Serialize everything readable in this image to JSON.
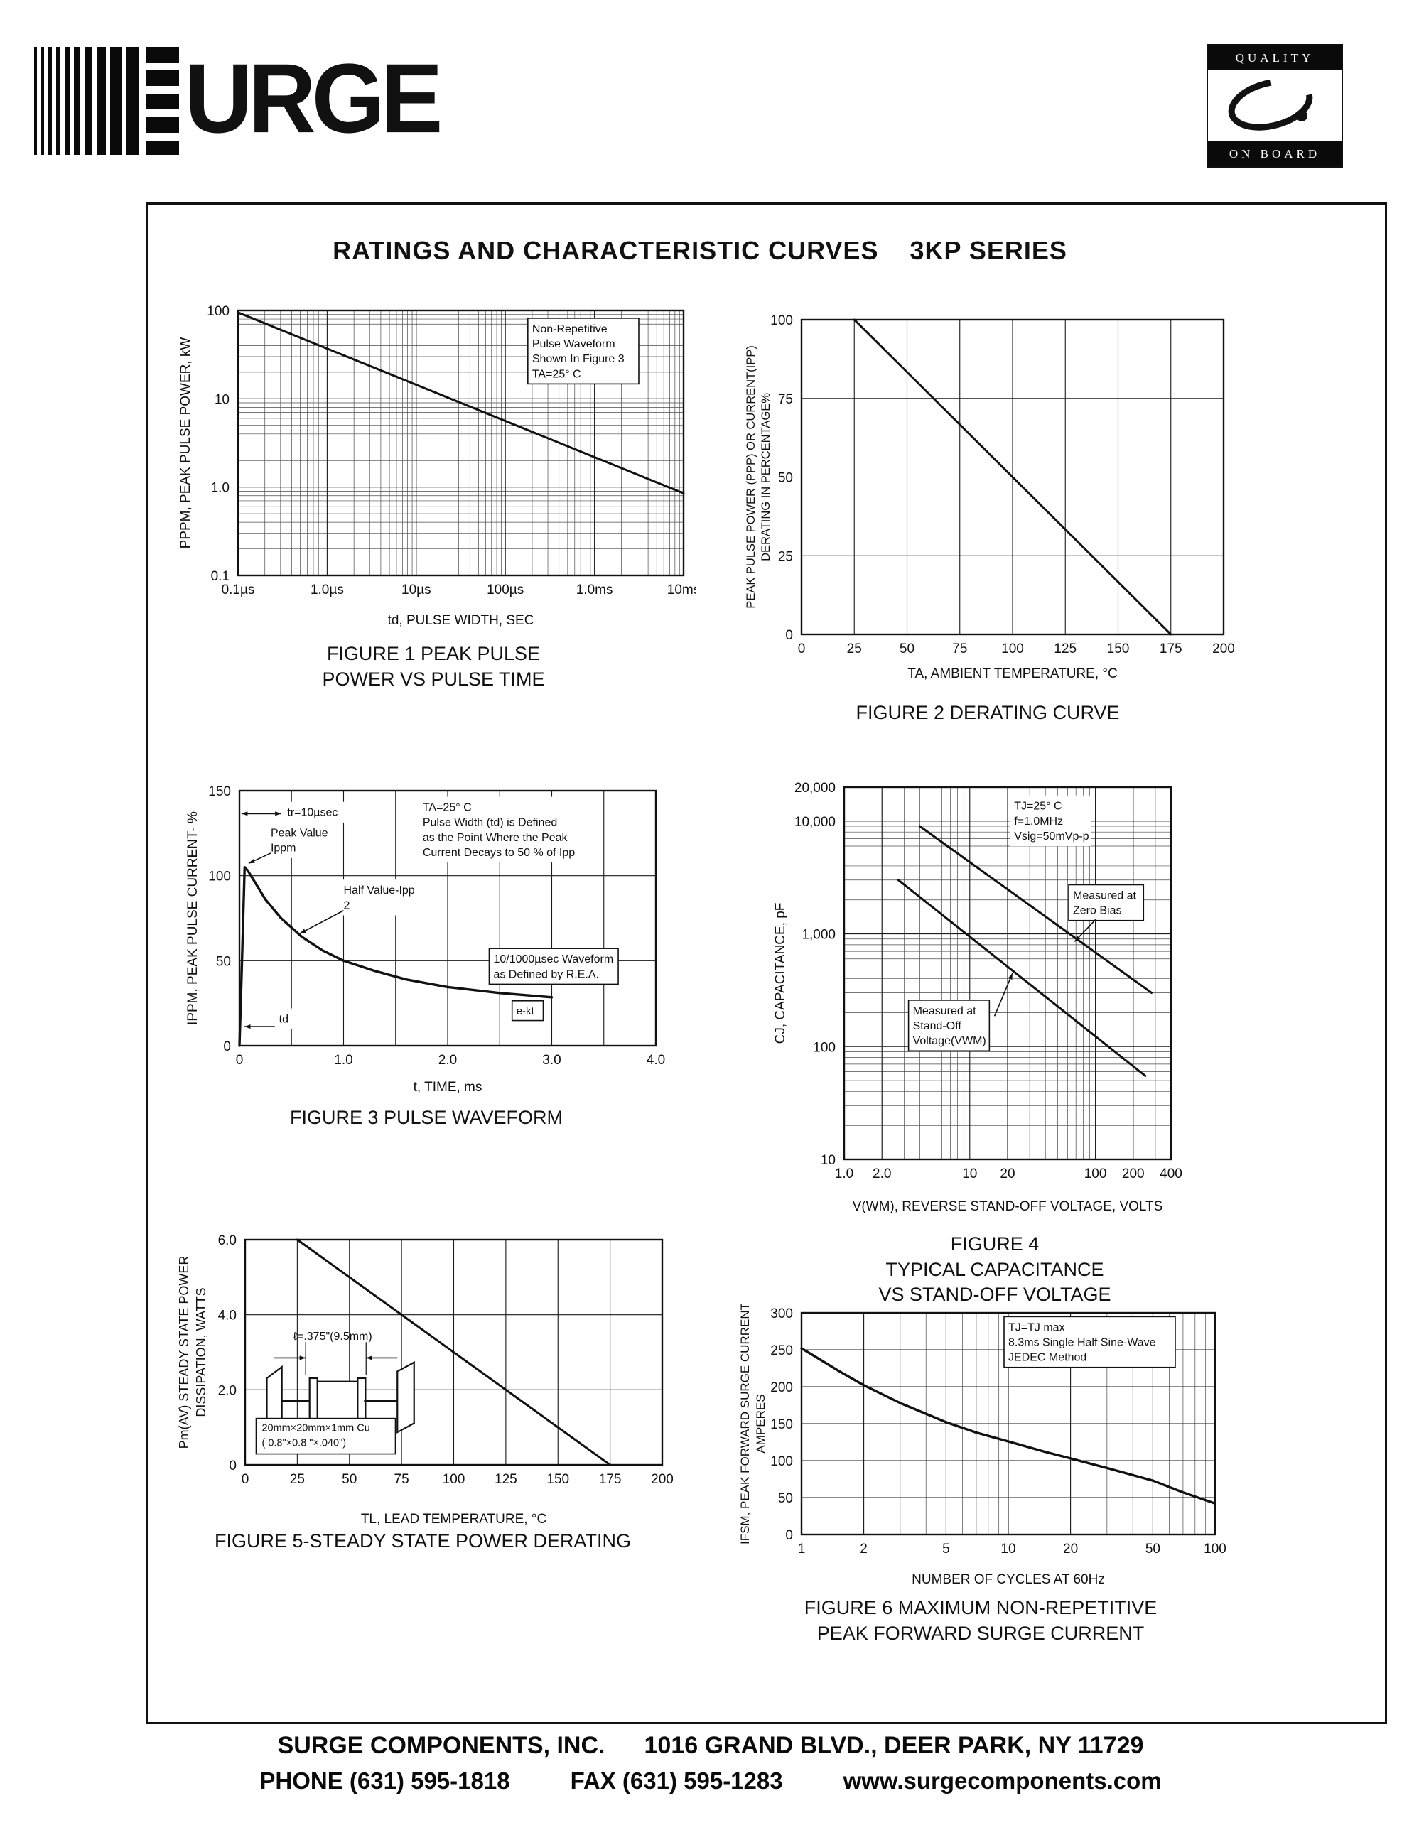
{
  "page": {
    "title": "RATINGS AND CHARACTERISTIC CURVES    3KP SERIES",
    "logo_text": "URGE",
    "quality_badge": {
      "top": "QUALITY",
      "bottom": "ON BOARD"
    },
    "footer": {
      "company": "SURGE COMPONENTS, INC.",
      "address": "1016 GRAND BLVD., DEER PARK, NY  11729",
      "phone": "PHONE (631) 595-1818",
      "fax": "FAX  (631) 595-1283",
      "website": "www.surgecomponents.com"
    }
  },
  "chart_data": [
    {
      "id": "fig1",
      "type": "line",
      "xscale": "log",
      "yscale": "log",
      "xlim": [
        1e-07,
        0.01
      ],
      "ylim": [
        0.1,
        100
      ],
      "xlabel": "td, PULSE WIDTH, SEC",
      "ylabel": "PPPM, PEAK PULSE POWER, kW",
      "x_ticks": [
        {
          "v": 1e-07,
          "label": "0.1µs"
        },
        {
          "v": 1e-06,
          "label": "1.0µs"
        },
        {
          "v": 1e-05,
          "label": "10µs"
        },
        {
          "v": 0.0001,
          "label": "100µs"
        },
        {
          "v": 0.001,
          "label": "1.0ms"
        },
        {
          "v": 0.01,
          "label": "10ms"
        }
      ],
      "y_ticks": [
        {
          "v": 0.1,
          "label": "0.1"
        },
        {
          "v": 1,
          "label": "1.0"
        },
        {
          "v": 10,
          "label": "10"
        },
        {
          "v": 100,
          "label": "100"
        }
      ],
      "minor_x": true,
      "minor_y": true,
      "series": [
        {
          "name": "peak-pulse-power",
          "points": [
            [
              1e-07,
              95
            ],
            [
              0.01,
              0.85
            ]
          ]
        }
      ],
      "annotations": [
        {
          "text": "Non-Repetitive\nPulse Waveform\nShown In Figure 3\nTA=25° C",
          "x": 0.66,
          "y": 0.04,
          "boxed": true,
          "size": 16
        }
      ],
      "caption": "FIGURE 1 PEAK PULSE\nPOWER VS PULSE TIME"
    },
    {
      "id": "fig2",
      "type": "line",
      "xscale": "linear",
      "yscale": "linear",
      "xlim": [
        0,
        200
      ],
      "ylim": [
        0,
        100
      ],
      "xlabel": "TA, AMBIENT   TEMPERATURE, °C",
      "ylabel": "PEAK  PULSE  POWER (PPP) OR  CURRENT(IPP)\nDERATING IN PERCENTAGE%",
      "x_ticks": [
        {
          "v": 0,
          "label": "0"
        },
        {
          "v": 25,
          "label": "25"
        },
        {
          "v": 50,
          "label": "50"
        },
        {
          "v": 75,
          "label": "75"
        },
        {
          "v": 100,
          "label": "100"
        },
        {
          "v": 125,
          "label": "125"
        },
        {
          "v": 150,
          "label": "150"
        },
        {
          "v": 175,
          "label": "175"
        },
        {
          "v": 200,
          "label": "200"
        }
      ],
      "y_ticks": [
        {
          "v": 0,
          "label": "0"
        },
        {
          "v": 25,
          "label": "25"
        },
        {
          "v": 50,
          "label": "50"
        },
        {
          "v": 75,
          "label": "75"
        },
        {
          "v": 100,
          "label": "100"
        }
      ],
      "series": [
        {
          "name": "derating",
          "points": [
            [
              25,
              100
            ],
            [
              175,
              0
            ]
          ]
        }
      ],
      "caption": "FIGURE 2 DERATING CURVE"
    },
    {
      "id": "fig3",
      "type": "line",
      "xscale": "linear",
      "yscale": "linear",
      "xlim": [
        0,
        4
      ],
      "ylim": [
        0,
        150
      ],
      "xlabel": "t, TIME, ms",
      "ylabel": "IPPM, PEAK PULSE CURRENT- %",
      "x_ticks": [
        {
          "v": 0,
          "label": "0"
        },
        {
          "v": 0.5,
          "label": ""
        },
        {
          "v": 1,
          "label": "1.0"
        },
        {
          "v": 1.5,
          "label": ""
        },
        {
          "v": 2,
          "label": "2.0"
        },
        {
          "v": 2.5,
          "label": ""
        },
        {
          "v": 3,
          "label": "3.0"
        },
        {
          "v": 3.5,
          "label": ""
        },
        {
          "v": 4,
          "label": "4.0"
        }
      ],
      "y_ticks": [
        {
          "v": 0,
          "label": "0"
        },
        {
          "v": 50,
          "label": "50"
        },
        {
          "v": 100,
          "label": "100"
        },
        {
          "v": 150,
          "label": "150"
        }
      ],
      "series": [
        {
          "name": "pulse-waveform",
          "points": [
            [
              0,
              0
            ],
            [
              0.02,
              40
            ],
            [
              0.05,
              105
            ],
            [
              0.08,
              103
            ],
            [
              0.15,
              96
            ],
            [
              0.25,
              86
            ],
            [
              0.4,
              75
            ],
            [
              0.6,
              64
            ],
            [
              0.8,
              56
            ],
            [
              1.0,
              50
            ],
            [
              1.3,
              44
            ],
            [
              1.6,
              39
            ],
            [
              2.0,
              34.5
            ],
            [
              2.5,
              31
            ],
            [
              3.0,
              28.5
            ]
          ],
          "w": 3.4
        }
      ],
      "annotations": [
        {
          "text": "tr=10µsec",
          "x": 0.115,
          "y": 0.055,
          "size": 16
        },
        {
          "text": "Peak Value\n Ippm",
          "x": 0.075,
          "y": 0.135,
          "size": 16
        },
        {
          "text": "Half Value-Ipp\n          2",
          "x": 0.25,
          "y": 0.36,
          "size": 16
        },
        {
          "text": "TA=25° C\nPulse Width (td) is Defined\nas the Point Where the Peak\nCurrent Decays to 50 % of Ipp",
          "x": 0.44,
          "y": 0.035,
          "size": 16
        },
        {
          "text": "10/1000µsec Waveform\nas Defined by R.E.A.",
          "x": 0.61,
          "y": 0.63,
          "boxed": true,
          "size": 16
        },
        {
          "text": "e-kt",
          "x": 0.665,
          "y": 0.835,
          "boxed": true,
          "size": 15
        },
        {
          "text": "td",
          "x": 0.095,
          "y": 0.865,
          "size": 16
        }
      ],
      "arrows": [
        {
          "x1": 0.1,
          "y1": 0.09,
          "x2": 0.005,
          "y2": 0.09
        },
        {
          "x1": 0.005,
          "y1": 0.09,
          "x2": 0.1,
          "y2": 0.09
        },
        {
          "x1": 0.075,
          "y1": 0.245,
          "x2": 0.022,
          "y2": 0.285
        },
        {
          "x1": 0.25,
          "y1": 0.47,
          "x2": 0.145,
          "y2": 0.56
        },
        {
          "x1": 0.085,
          "y1": 0.925,
          "x2": 0.012,
          "y2": 0.925
        }
      ],
      "caption": "FIGURE 3  PULSE WAVEFORM"
    },
    {
      "id": "fig4",
      "type": "line",
      "xscale": "log",
      "yscale": "log",
      "xlim": [
        1,
        400
      ],
      "ylim": [
        10,
        20000
      ],
      "xlabel": "V(WM), REVERSE STAND-OFF VOLTAGE, VOLTS",
      "ylabel": "CJ, CAPACITANCE, pF",
      "x_ticks": [
        {
          "v": 1,
          "label": "1.0"
        },
        {
          "v": 2,
          "label": "2.0"
        },
        {
          "v": 10,
          "label": "10"
        },
        {
          "v": 20,
          "label": "20"
        },
        {
          "v": 100,
          "label": "100"
        },
        {
          "v": 200,
          "label": "200"
        },
        {
          "v": 400,
          "label": "400"
        }
      ],
      "y_ticks": [
        {
          "v": 10,
          "label": "10"
        },
        {
          "v": 100,
          "label": "100"
        },
        {
          "v": 1000,
          "label": "1,000"
        },
        {
          "v": 10000,
          "label": "10,000"
        },
        {
          "v": 20000,
          "label": "20,000"
        }
      ],
      "minor_x": true,
      "minor_y": true,
      "series": [
        {
          "name": "Measured at Zero Bias",
          "points": [
            [
              4,
              9000
            ],
            [
              280,
              300
            ]
          ]
        },
        {
          "name": "Measured at Stand-Off Voltage(VWM)",
          "points": [
            [
              2.7,
              3000
            ],
            [
              250,
              55
            ]
          ]
        }
      ],
      "annotations": [
        {
          "text": "TJ=25° C\nf=1.0MHz\nVsig=50mVp-p",
          "x": 0.52,
          "y": 0.03,
          "size": 16
        },
        {
          "text": "Measured at\nZero Bias",
          "x": 0.7,
          "y": 0.27,
          "boxed": true,
          "size": 16
        },
        {
          "text": "Measured at\nStand-Off\nVoltage(VWM)",
          "x": 0.21,
          "y": 0.58,
          "boxed": true,
          "size": 16
        }
      ],
      "arrows": [
        {
          "x1": 0.77,
          "y1": 0.355,
          "x2": 0.705,
          "y2": 0.415
        },
        {
          "x1": 0.46,
          "y1": 0.615,
          "x2": 0.515,
          "y2": 0.5
        }
      ],
      "caption": "FIGURE 4\nTYPICAL CAPACITANCE\nVS STAND-OFF VOLTAGE"
    },
    {
      "id": "fig5",
      "type": "line",
      "xscale": "linear",
      "yscale": "linear",
      "xlim": [
        0,
        200
      ],
      "ylim": [
        0,
        6
      ],
      "xlabel": "TL, LEAD  TEMPERATURE, °C",
      "ylabel": "Pm(AV) STEADY STATE POWER\nDISSIPATION, WATTS",
      "x_ticks": [
        {
          "v": 0,
          "label": "0"
        },
        {
          "v": 25,
          "label": "25"
        },
        {
          "v": 50,
          "label": "50"
        },
        {
          "v": 75,
          "label": "75"
        },
        {
          "v": 100,
          "label": "100"
        },
        {
          "v": 125,
          "label": "125"
        },
        {
          "v": 150,
          "label": "150"
        },
        {
          "v": 175,
          "label": "175"
        },
        {
          "v": 200,
          "label": "200"
        }
      ],
      "y_ticks": [
        {
          "v": 0,
          "label": "0"
        },
        {
          "v": 2,
          "label": "2.0"
        },
        {
          "v": 4,
          "label": "4.0"
        },
        {
          "v": 6,
          "label": "6.0"
        }
      ],
      "series": [
        {
          "name": "steady-state-power",
          "points": [
            [
              25,
              6
            ],
            [
              175,
              0
            ]
          ]
        }
      ],
      "inset": {
        "length_label": "ℓ=.375\"(9.5mm)",
        "plate_label": "20mm×20mm×1mm Cu\n( 0.8\"×0.8 \"×.040\")"
      },
      "caption": "FIGURE 5-STEADY STATE POWER DERATING"
    },
    {
      "id": "fig6",
      "type": "line",
      "xscale": "log",
      "yscale": "linear",
      "xlim": [
        1,
        100
      ],
      "ylim": [
        0,
        300
      ],
      "xlabel": "NUMBER  OF  CYCLES  AT  60Hz",
      "ylabel": "IFSM, PEAK FORWARD SURGE CURRENT\nAMPERES",
      "x_ticks": [
        {
          "v": 1,
          "label": "1"
        },
        {
          "v": 2,
          "label": "2"
        },
        {
          "v": 5,
          "label": "5"
        },
        {
          "v": 10,
          "label": "10"
        },
        {
          "v": 20,
          "label": "20"
        },
        {
          "v": 50,
          "label": "50"
        },
        {
          "v": 100,
          "label": "100"
        }
      ],
      "y_ticks": [
        {
          "v": 0,
          "label": "0"
        },
        {
          "v": 50,
          "label": "50"
        },
        {
          "v": 100,
          "label": "100"
        },
        {
          "v": 150,
          "label": "150"
        },
        {
          "v": 200,
          "label": "200"
        },
        {
          "v": 250,
          "label": "250"
        },
        {
          "v": 300,
          "label": "300"
        }
      ],
      "minor_x": true,
      "series": [
        {
          "name": "surge-current",
          "points": [
            [
              1,
              252
            ],
            [
              1.5,
              222
            ],
            [
              2,
              202
            ],
            [
              3,
              178
            ],
            [
              5,
              152
            ],
            [
              7,
              138
            ],
            [
              10,
              126
            ],
            [
              15,
              112
            ],
            [
              20,
              103
            ],
            [
              30,
              90
            ],
            [
              50,
              73
            ],
            [
              70,
              57
            ],
            [
              100,
              42
            ]
          ],
          "w": 3.4
        }
      ],
      "annotations": [
        {
          "text": "TJ=TJ max\n8.3ms Single Half Sine-Wave\nJEDEC Method",
          "x": 0.5,
          "y": 0.03,
          "boxed": true,
          "size": 16
        }
      ],
      "caption": "FIGURE 6  MAXIMUM NON-REPETITIVE\nPEAK FORWARD SURGE CURRENT"
    }
  ]
}
